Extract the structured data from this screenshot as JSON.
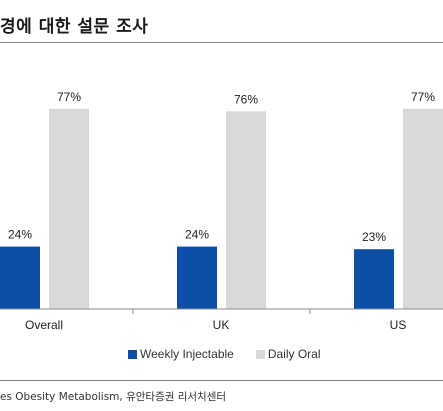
{
  "title": "경에 대한 설문 조사",
  "source": "es Obesity Metabolism, 유안타증권 리서치센터",
  "colors": {
    "injectable": "#0d4ea6",
    "oral": "#d9d9d9",
    "axis": "#8c8c8c"
  },
  "chart_data": {
    "type": "bar",
    "categories": [
      "Overall",
      "UK",
      "US"
    ],
    "series": [
      {
        "name": "Weekly Injectable",
        "values": [
          24,
          24,
          23
        ],
        "labels": [
          "24%",
          "24%",
          "23%"
        ]
      },
      {
        "name": "Daily Oral",
        "values": [
          77,
          76,
          77
        ],
        "labels": [
          "77%",
          "76%",
          "77%"
        ]
      }
    ],
    "ylim": [
      0,
      100
    ],
    "legend": "bottom",
    "grid": false
  }
}
